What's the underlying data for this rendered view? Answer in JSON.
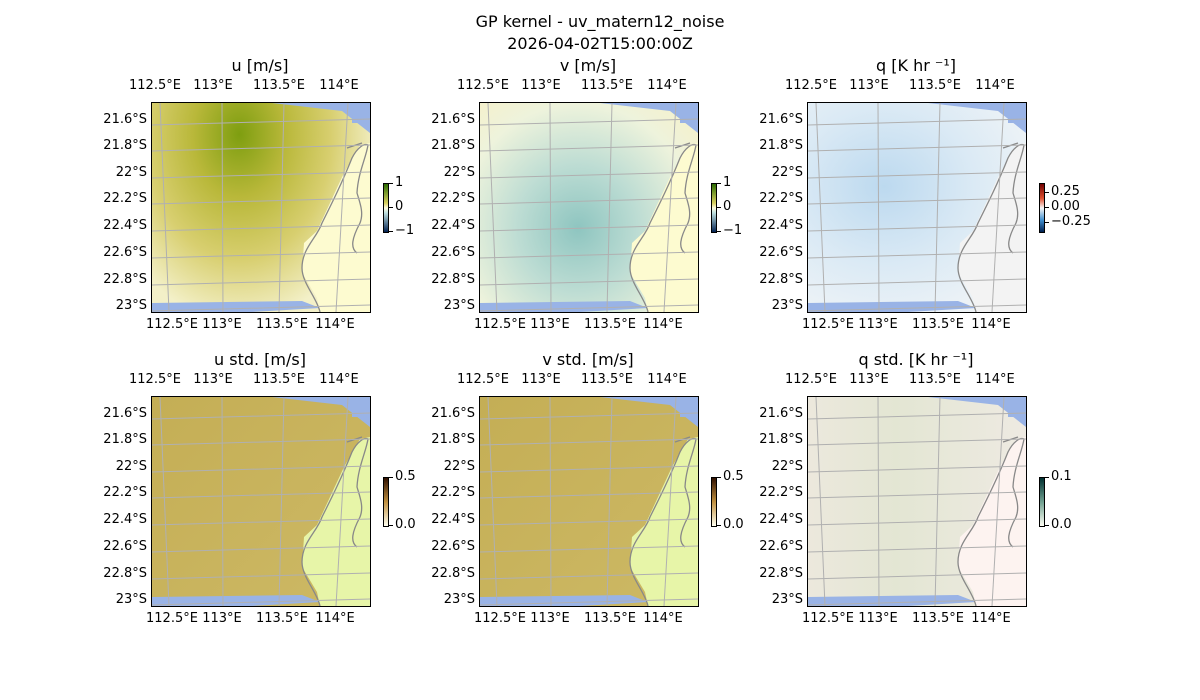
{
  "chart_data": {
    "type": "heatmap",
    "title": "GP kernel - uv_matern12_noise",
    "subtitle": "2026-04-02T15:00:00Z",
    "lon_ticks": [
      "112.5°E",
      "113°E",
      "113.5°E",
      "114°E"
    ],
    "lat_ticks": [
      "21.6°S",
      "21.8°S",
      "22°S",
      "22.2°S",
      "22.4°S",
      "22.6°S",
      "22.8°S",
      "23°S"
    ],
    "panels": [
      {
        "title": "u [m/s]",
        "cbar_ticks": [
          "1",
          "0",
          "−1"
        ],
        "vmin": -1,
        "vmax": 1,
        "colors": {
          "sea": "#c9bf4a",
          "land": "#fdfbd0"
        }
      },
      {
        "title": "v [m/s]",
        "cbar_ticks": [
          "1",
          "0",
          "−1"
        ],
        "vmin": -1,
        "vmax": 1,
        "colors": {
          "sea": "#b9d8cf",
          "land": "#fdfbd0"
        }
      },
      {
        "title": "q [K hr ⁻¹]",
        "cbar_ticks": [
          "0.25",
          "0.00",
          "−0.25"
        ],
        "vmin": -0.25,
        "vmax": 0.25,
        "colors": {
          "sea": "#dcebf5",
          "land": "#f3f3f3"
        }
      },
      {
        "title": "u std. [m/s]",
        "cbar_ticks": [
          "0.5",
          "0.0"
        ],
        "vmin": 0,
        "vmax": 0.5,
        "colors": {
          "sea": "#c9b45d",
          "land": "#e7f5a8"
        }
      },
      {
        "title": "v std. [m/s]",
        "cbar_ticks": [
          "0.5",
          "0.0"
        ],
        "vmin": 0,
        "vmax": 0.5,
        "colors": {
          "sea": "#c9b45d",
          "land": "#e7f5a8"
        }
      },
      {
        "title": "q std. [K hr ⁻¹]",
        "cbar_ticks": [
          "0.1",
          "0.0"
        ],
        "vmin": 0,
        "vmax": 0.1,
        "colors": {
          "sea": "#ede9e0",
          "land": "#fdf3f0"
        }
      }
    ]
  }
}
